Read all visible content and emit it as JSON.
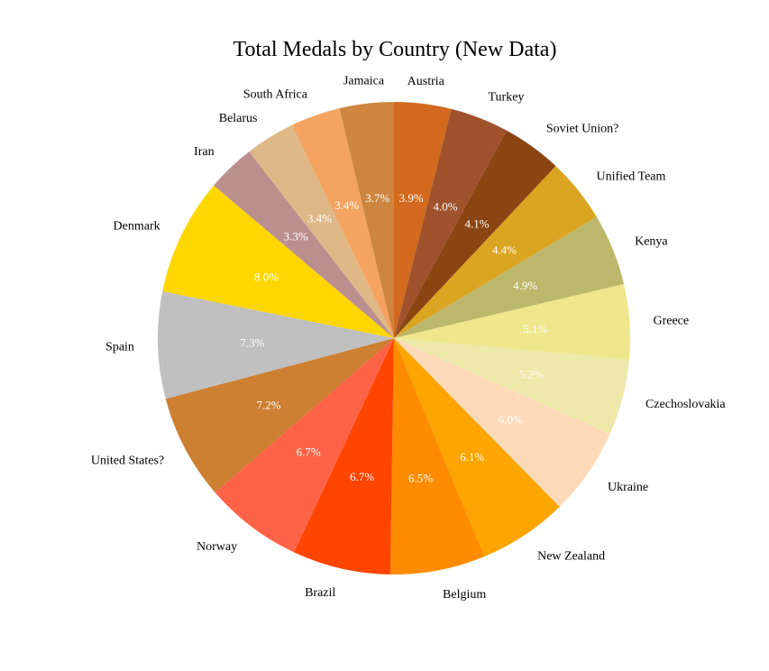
{
  "chart_data": {
    "type": "pie",
    "title": "Total Medals by Country (New Data)",
    "start": "top",
    "direction": "clockwise",
    "slices": [
      {
        "label": "Austria",
        "pct_label": "3.9%",
        "value": 3.9,
        "color": "#D2691E"
      },
      {
        "label": "Turkey",
        "pct_label": "4.0%",
        "value": 4.0,
        "color": "#A0522D"
      },
      {
        "label": "Soviet Union?",
        "pct_label": "4.1%",
        "value": 4.1,
        "color": "#8B4513"
      },
      {
        "label": "Unified Team",
        "pct_label": "4.4%",
        "value": 4.4,
        "color": "#DAA520"
      },
      {
        "label": "Kenya",
        "pct_label": "4.9%",
        "value": 4.9,
        "color": "#BDB76B"
      },
      {
        "label": "Greece",
        "pct_label": "5.1%",
        "value": 5.1,
        "color": "#F0E68C"
      },
      {
        "label": "Czechoslovakia",
        "pct_label": "5.2%",
        "value": 5.2,
        "color": "#EEE8AA"
      },
      {
        "label": "Ukraine",
        "pct_label": "6.0%",
        "value": 6.0,
        "color": "#FFDAB9"
      },
      {
        "label": "New Zealand",
        "pct_label": "6.1%",
        "value": 6.1,
        "color": "#FFA500"
      },
      {
        "label": "Belgium",
        "pct_label": "6.5%",
        "value": 6.5,
        "color": "#FF8C00"
      },
      {
        "label": "Brazil",
        "pct_label": "6.7%",
        "value": 6.7,
        "color": "#FF4500"
      },
      {
        "label": "Norway",
        "pct_label": "6.7%",
        "value": 6.7,
        "color": "#FF6347"
      },
      {
        "label": "United States?",
        "pct_label": "7.2%",
        "value": 7.2,
        "color": "#CD7F32"
      },
      {
        "label": "Spain",
        "pct_label": "7.3%",
        "value": 7.3,
        "color": "#C0C0C0"
      },
      {
        "label": "Denmark",
        "pct_label": "8.0%",
        "value": 8.0,
        "color": "#FFD700"
      },
      {
        "label": "Iran",
        "pct_label": "3.3%",
        "value": 3.3,
        "color": "#BC8F8F"
      },
      {
        "label": "Belarus",
        "pct_label": "3.4%",
        "value": 3.4,
        "color": "#DEB887"
      },
      {
        "label": "South Africa",
        "pct_label": "3.4%",
        "value": 3.4,
        "color": "#F4A460"
      },
      {
        "label": "Jamaica",
        "pct_label": "3.7%",
        "value": 3.7,
        "color": "#CD853F"
      }
    ]
  }
}
